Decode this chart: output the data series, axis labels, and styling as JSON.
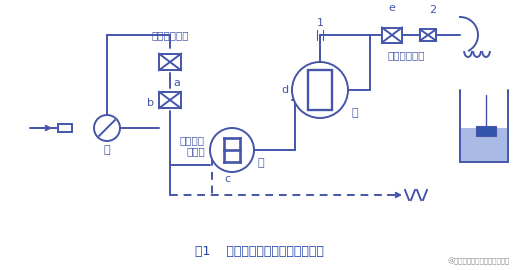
{
  "title": "图1    仪表内传感器安装位置示意图",
  "watermark": "@淮安泰可自动化仪表有限公司",
  "bg_color": "#ffffff",
  "line_color": "#4455aa",
  "line_width": 1.4,
  "labels": {
    "pump": "泵",
    "a": "a",
    "b": "b",
    "c": "c",
    "d": "d",
    "e": "e",
    "label1": "1",
    "label2": "2",
    "air": "容易积聚空气",
    "maybe_not_full": "液体可能\n不充满",
    "not_full": "液体没有充满",
    "good1": "好",
    "good2": "好"
  },
  "colors": {
    "line": "#4455aa",
    "fill_light": "#aabbdd",
    "water": "#3355aa"
  }
}
